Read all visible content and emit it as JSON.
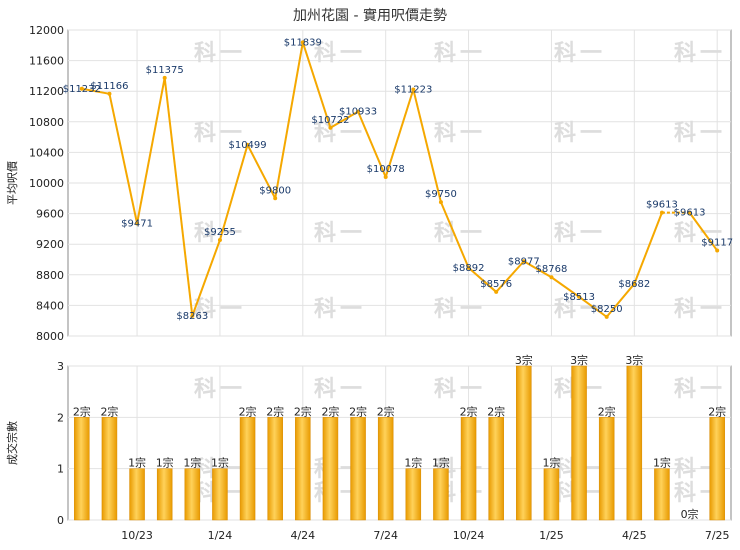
{
  "chart_data": [
    {
      "type": "line",
      "title": "加州花園 - 實用呎價走勢",
      "ylabel": "平均呎價",
      "ylim": [
        8000,
        12000
      ],
      "yticks": [
        8000,
        8400,
        8800,
        9200,
        9600,
        10000,
        10400,
        10800,
        11200,
        11600,
        12000
      ],
      "x_tick_labels": [
        "10/23",
        "1/24",
        "4/24",
        "7/24",
        "10/24",
        "1/25",
        "4/25",
        "7/25"
      ],
      "grid": true,
      "color": "#F5A800",
      "points": [
        {
          "value": 11232,
          "label": "$11232"
        },
        {
          "value": 11166,
          "label": "$11166"
        },
        {
          "value": 9471,
          "label": "$9471"
        },
        {
          "value": 11375,
          "label": "$11375"
        },
        {
          "value": 8263,
          "label": "$8263"
        },
        {
          "value": 9255,
          "label": "$9255"
        },
        {
          "value": 10499,
          "label": "$10499"
        },
        {
          "value": 9800,
          "label": "$9800"
        },
        {
          "value": 11839,
          "label": "$11839"
        },
        {
          "value": 10722,
          "label": "$10722"
        },
        {
          "value": 10933,
          "label": "$10933"
        },
        {
          "value": 10078,
          "label": "$10078"
        },
        {
          "value": 11223,
          "label": "$11223"
        },
        {
          "value": 9750,
          "label": "$9750"
        },
        {
          "value": 8892,
          "label": "$8892"
        },
        {
          "value": 8576,
          "label": "$8576"
        },
        {
          "value": 8977,
          "label": "$8977"
        },
        {
          "value": 8768,
          "label": "$8768"
        },
        {
          "value": 8513,
          "label": "$8513"
        },
        {
          "value": 8250,
          "label": "$8250"
        },
        {
          "value": 8682,
          "label": "$8682"
        },
        {
          "value": 9613,
          "label": "$9613"
        },
        {
          "value": 9613,
          "label": "$9613"
        },
        {
          "value": 9117,
          "label": "$9117"
        }
      ]
    },
    {
      "type": "bar",
      "ylabel": "成交宗數",
      "ylim": [
        0,
        3
      ],
      "yticks": [
        0,
        1,
        2,
        3
      ],
      "x_tick_labels": [
        "10/23",
        "1/24",
        "4/24",
        "7/24",
        "10/24",
        "1/25",
        "4/25",
        "7/25"
      ],
      "grid": true,
      "color": "#F5A800",
      "bars": [
        {
          "value": 2,
          "label": "2宗"
        },
        {
          "value": 2,
          "label": "2宗"
        },
        {
          "value": 1,
          "label": "1宗"
        },
        {
          "value": 1,
          "label": "1宗"
        },
        {
          "value": 1,
          "label": "1宗"
        },
        {
          "value": 1,
          "label": "1宗"
        },
        {
          "value": 2,
          "label": "2宗"
        },
        {
          "value": 2,
          "label": "2宗"
        },
        {
          "value": 2,
          "label": "2宗"
        },
        {
          "value": 2,
          "label": "2宗"
        },
        {
          "value": 2,
          "label": "2宗"
        },
        {
          "value": 2,
          "label": "2宗"
        },
        {
          "value": 1,
          "label": "1宗"
        },
        {
          "value": 1,
          "label": "1宗"
        },
        {
          "value": 2,
          "label": "2宗"
        },
        {
          "value": 2,
          "label": "2宗"
        },
        {
          "value": 3,
          "label": "3宗"
        },
        {
          "value": 1,
          "label": "1宗"
        },
        {
          "value": 3,
          "label": "3宗"
        },
        {
          "value": 2,
          "label": "2宗"
        },
        {
          "value": 3,
          "label": "3宗"
        },
        {
          "value": 1,
          "label": "1宗"
        },
        {
          "value": 0,
          "label": "0宗"
        },
        {
          "value": 2,
          "label": "2宗"
        }
      ]
    }
  ]
}
